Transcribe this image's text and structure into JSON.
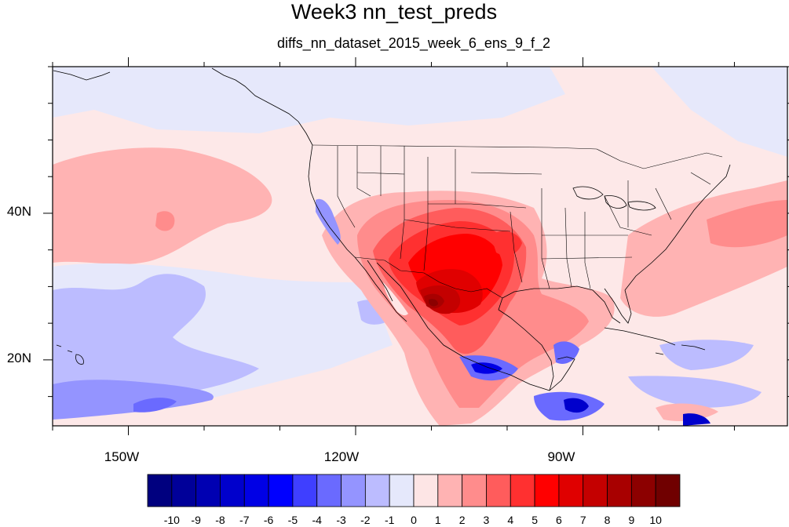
{
  "title": "Week3 nn_test_preds",
  "subtitle": "diffs_nn_dataset_2015_week_6_ens_9_f_2",
  "map": {
    "lon_range": [
      -160,
      -63
    ],
    "lat_range": [
      11,
      60
    ],
    "lon_ticks": [
      {
        "value": -150,
        "label": "150W"
      },
      {
        "value": -120,
        "label": "120W"
      },
      {
        "value": -90,
        "label": "90W"
      }
    ],
    "lat_ticks": [
      {
        "value": 40,
        "label": "40N"
      },
      {
        "value": 20,
        "label": "20N"
      }
    ],
    "background_color": "#fde8e8"
  },
  "colorbar": {
    "levels": [
      "-10",
      "-9",
      "-8",
      "-7",
      "-6",
      "-5",
      "-4",
      "-3",
      "-2",
      "-1",
      "0",
      "1",
      "2",
      "3",
      "4",
      "5",
      "6",
      "7",
      "8",
      "9",
      "10"
    ],
    "colors": [
      "#00007f",
      "#000099",
      "#0000b2",
      "#0000cc",
      "#0000e5",
      "#0000ff",
      "#3f3fff",
      "#6a6aff",
      "#9494ff",
      "#bcbcff",
      "#e5e8fb",
      "#fde5e5",
      "#ffb3b3",
      "#ff8c8c",
      "#ff5c5c",
      "#ff3030",
      "#ff0000",
      "#e00000",
      "#c40000",
      "#a80000",
      "#8c0000",
      "#700000"
    ]
  }
}
